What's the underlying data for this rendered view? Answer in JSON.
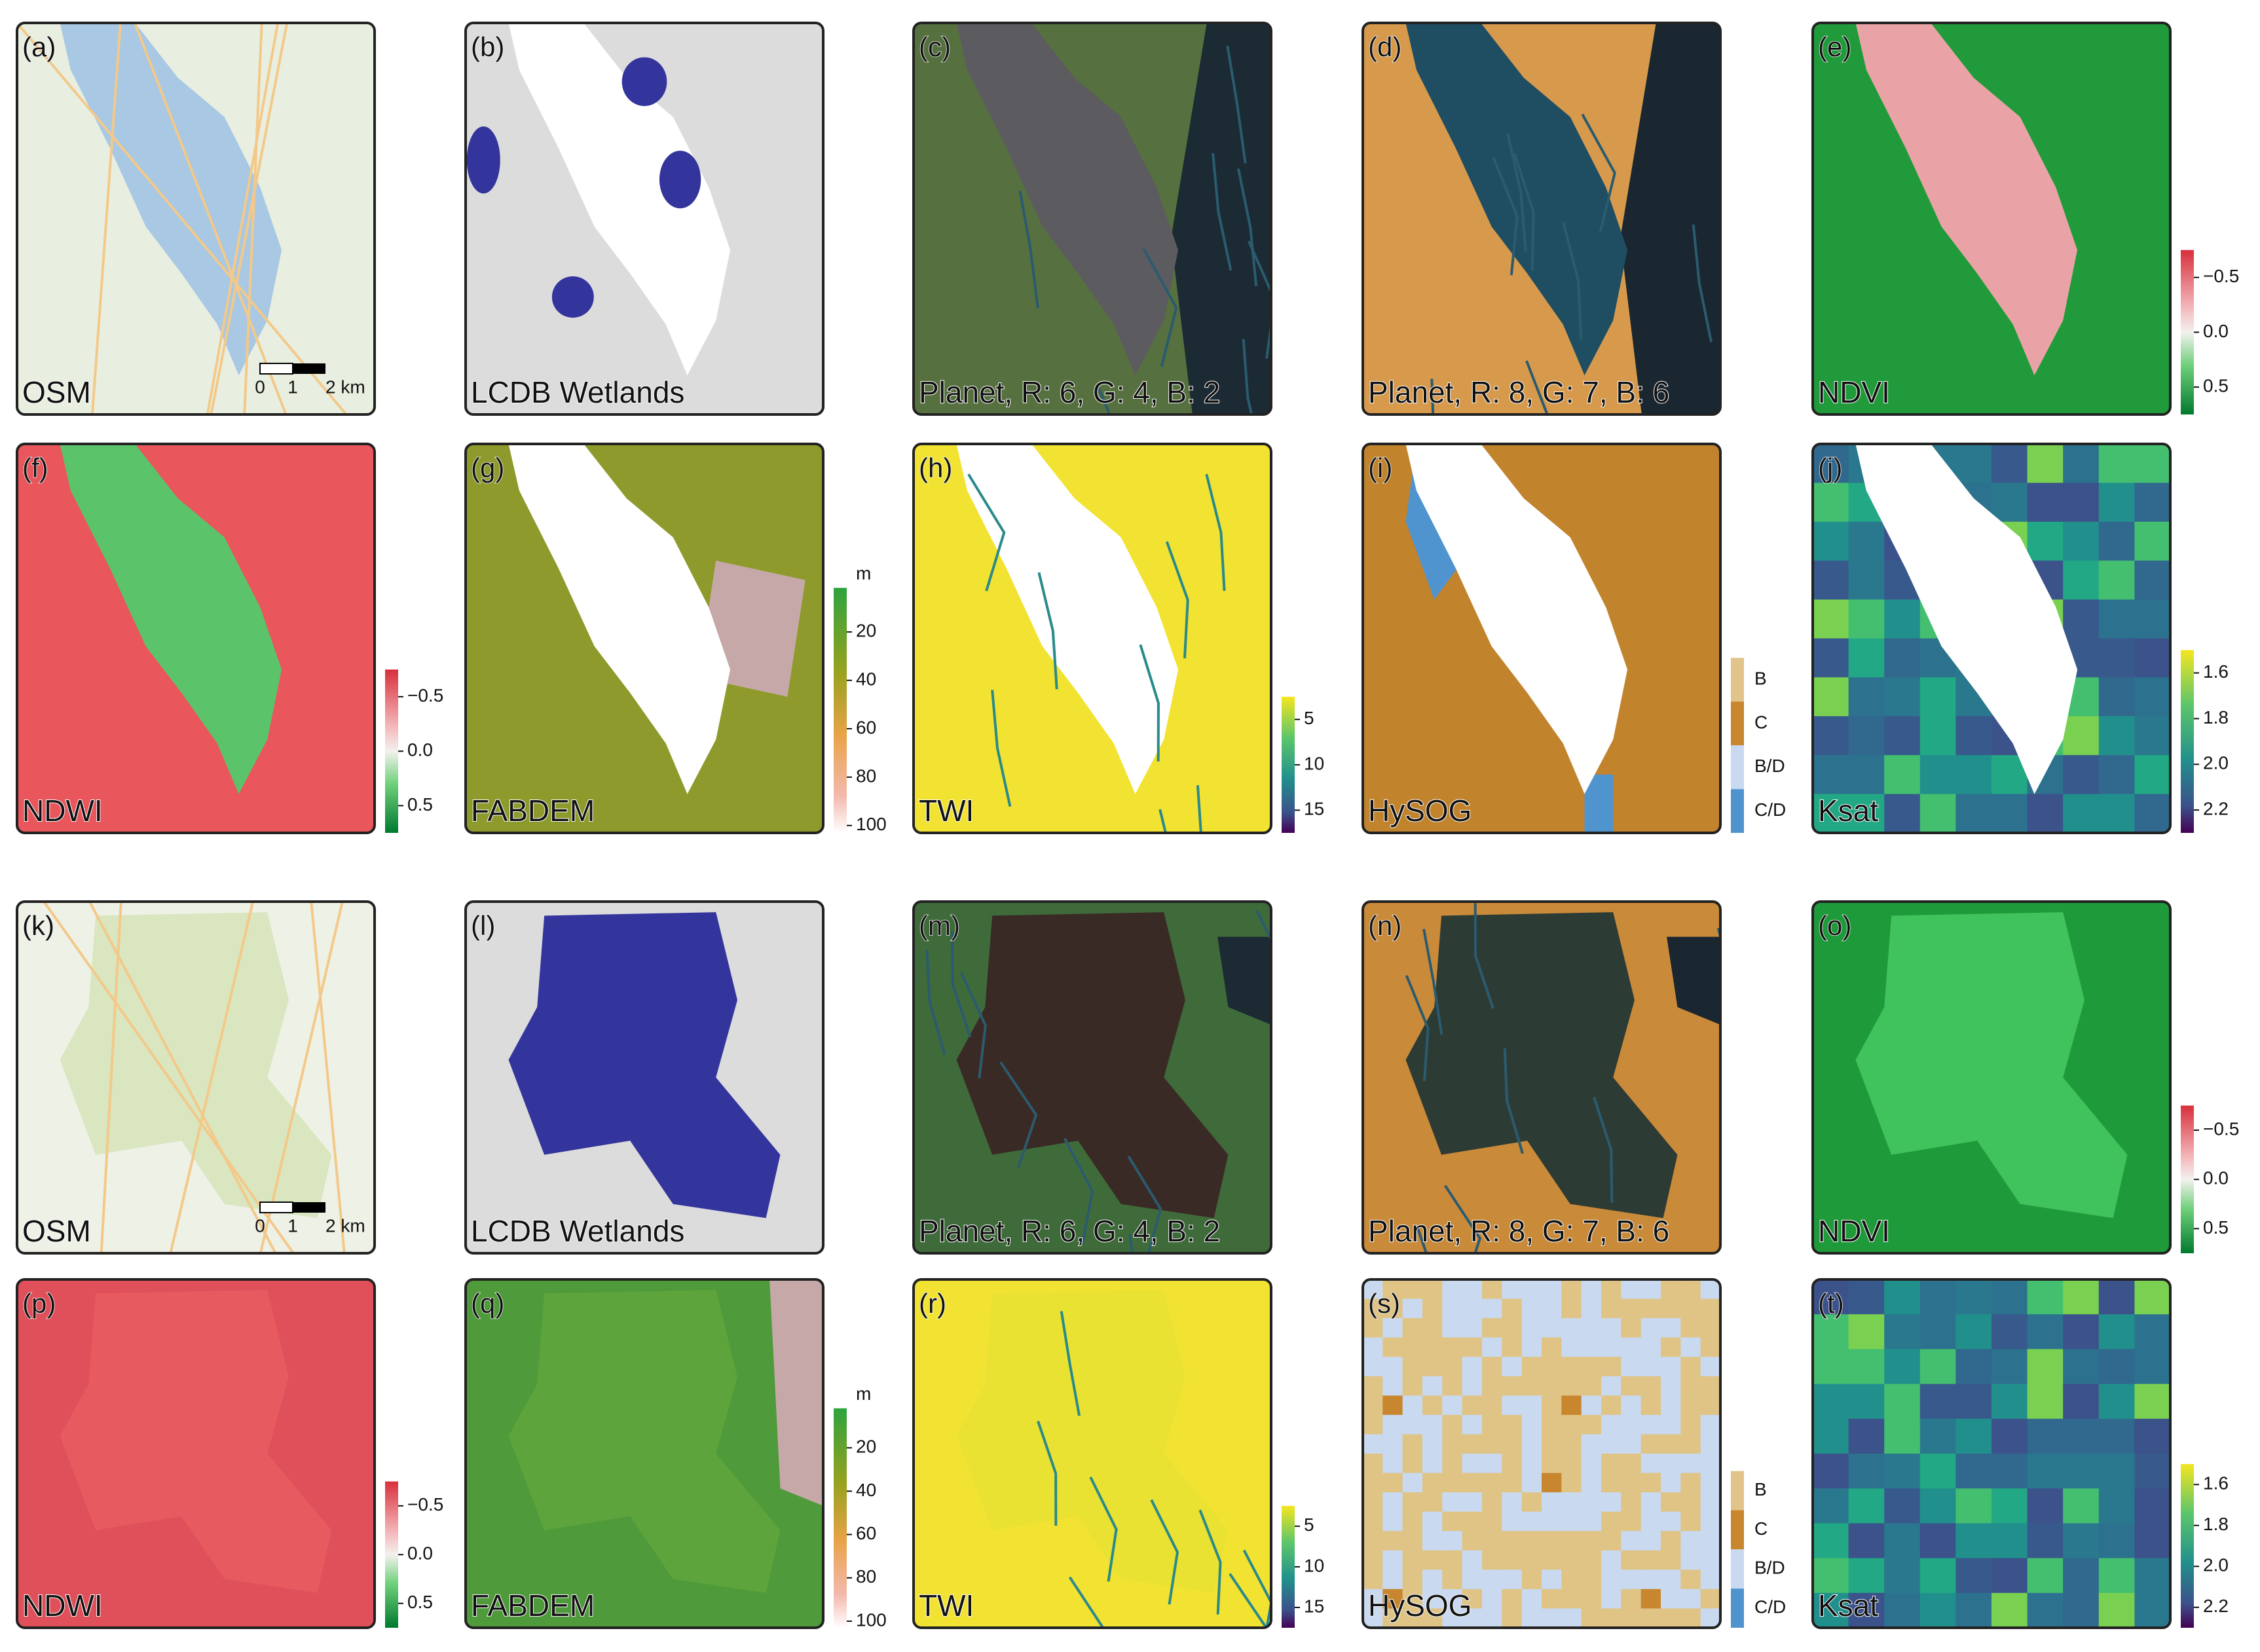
{
  "panels": [
    {
      "label": "(a)",
      "caption": "OSM",
      "scale_bar": [
        "0",
        "1",
        "2 km"
      ]
    },
    {
      "label": "(b)",
      "caption": "LCDB Wetlands"
    },
    {
      "label": "(c)",
      "caption": "Planet, R: 6, G: 4, B: 2"
    },
    {
      "label": "(d)",
      "caption": "Planet, R: 8, G: 7, B: 6"
    },
    {
      "label": "(e)",
      "caption": "NDVI",
      "legend": {
        "ticks": [
          "−0.5",
          "0.0",
          "0.5"
        ]
      }
    },
    {
      "label": "(f)",
      "caption": "NDWI",
      "legend": {
        "ticks": [
          "−0.5",
          "0.0",
          "0.5"
        ]
      }
    },
    {
      "label": "(g)",
      "caption": "FABDEM",
      "legend": {
        "unit": "m",
        "ticks": [
          "20",
          "40",
          "60",
          "80",
          "100"
        ]
      }
    },
    {
      "label": "(h)",
      "caption": "TWI",
      "legend": {
        "ticks": [
          "5",
          "10",
          "15"
        ]
      }
    },
    {
      "label": "(i)",
      "caption": "HySOG",
      "legend": {
        "classes": [
          "B",
          "C",
          "B/D",
          "C/D"
        ]
      }
    },
    {
      "label": "(j)",
      "caption": "Ksat",
      "legend": {
        "ticks": [
          "1.6",
          "1.8",
          "2.0",
          "2.2"
        ]
      }
    },
    {
      "label": "(k)",
      "caption": "OSM",
      "scale_bar": [
        "0",
        "1",
        "2 km"
      ]
    },
    {
      "label": "(l)",
      "caption": "LCDB Wetlands"
    },
    {
      "label": "(m)",
      "caption": "Planet, R: 6, G: 4, B: 2"
    },
    {
      "label": "(n)",
      "caption": "Planet, R: 8, G: 7, B: 6"
    },
    {
      "label": "(o)",
      "caption": "NDVI",
      "legend": {
        "ticks": [
          "−0.5",
          "0.0",
          "0.5"
        ]
      }
    },
    {
      "label": "(p)",
      "caption": "NDWI",
      "legend": {
        "ticks": [
          "−0.5",
          "0.0",
          "0.5"
        ]
      }
    },
    {
      "label": "(q)",
      "caption": "FABDEM",
      "legend": {
        "unit": "m",
        "ticks": [
          "20",
          "40",
          "60",
          "80",
          "100"
        ]
      }
    },
    {
      "label": "(r)",
      "caption": "TWI",
      "legend": {
        "ticks": [
          "5",
          "10",
          "15"
        ]
      }
    },
    {
      "label": "(s)",
      "caption": "HySOG",
      "legend": {
        "classes": [
          "B",
          "C",
          "B/D",
          "C/D"
        ]
      }
    },
    {
      "label": "(t)",
      "caption": "Ksat",
      "legend": {
        "ticks": [
          "1.6",
          "1.8",
          "2.0",
          "2.2"
        ]
      }
    }
  ]
}
